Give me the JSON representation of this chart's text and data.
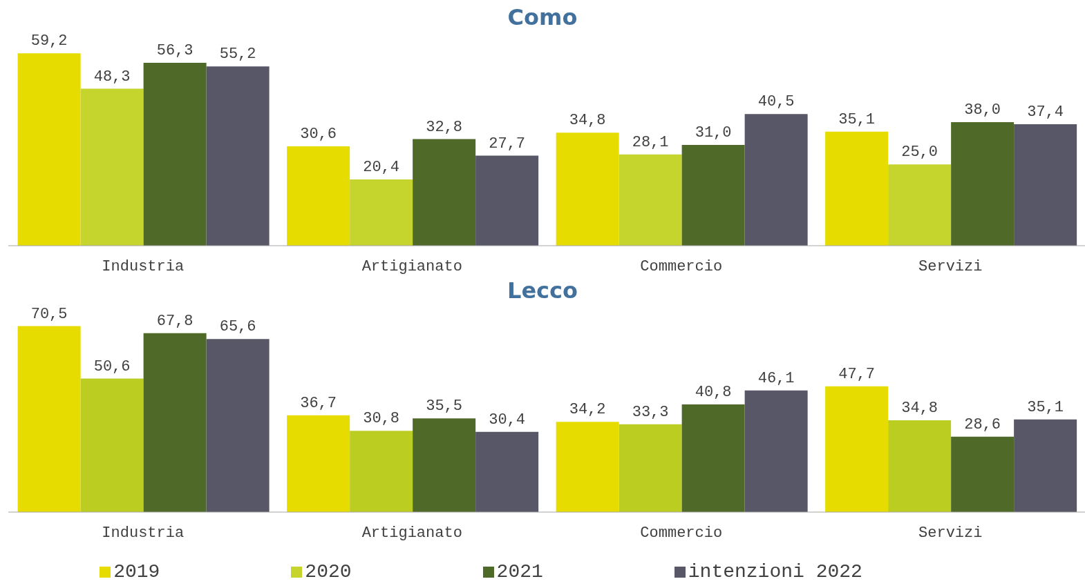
{
  "chart_data": [
    {
      "type": "bar",
      "title": "Como",
      "categories": [
        "Industria",
        "Artigianato",
        "Commercio",
        "Servizi"
      ],
      "tick_labels": "x",
      "grid": false,
      "legend": "bottom",
      "series": [
        {
          "name": "2019",
          "color": "#e6dc00",
          "values": [
            59.2,
            30.6,
            34.8,
            35.1
          ],
          "value_labels": [
            "59,2",
            "30,6",
            "34,8",
            "35,1"
          ]
        },
        {
          "name": "2020",
          "color": "#c6d42e",
          "values": [
            48.3,
            20.4,
            28.1,
            25.0
          ],
          "value_labels": [
            "48,3",
            "20,4",
            "28,1",
            "25,0"
          ]
        },
        {
          "name": "2021",
          "color": "#4f6a28",
          "values": [
            56.3,
            32.8,
            31.0,
            38.0
          ],
          "value_labels": [
            "56,3",
            "32,8",
            "31,0",
            "38,0"
          ]
        },
        {
          "name": "intenzioni 2022",
          "color": "#575768",
          "values": [
            55.2,
            27.7,
            40.5,
            37.4
          ],
          "value_labels": [
            "55,2",
            "27,7",
            "40,5",
            "37,4"
          ]
        }
      ]
    },
    {
      "type": "bar",
      "title": "Lecco",
      "categories": [
        "Industria",
        "Artigianato",
        "Commercio",
        "Servizi"
      ],
      "tick_labels": "x",
      "grid": false,
      "series": [
        {
          "color": "#e6dc00",
          "values": [
            70.5,
            36.7,
            34.2,
            47.7
          ],
          "value_labels": [
            "70,5",
            "36,7",
            "34,2",
            "47,7"
          ]
        },
        {
          "color": "#bccd22",
          "values": [
            50.6,
            30.8,
            33.3,
            34.8
          ],
          "value_labels": [
            "50,6",
            "30,8",
            "33,3",
            "34,8"
          ]
        },
        {
          "color": "#4f6a28",
          "values": [
            67.8,
            35.5,
            40.8,
            28.6
          ],
          "value_labels": [
            "67,8",
            "35,5",
            "40,8",
            "28,6"
          ]
        },
        {
          "color": "#575768",
          "values": [
            65.6,
            30.4,
            46.1,
            35.1
          ],
          "value_labels": [
            "65,6",
            "30,4",
            "46,1",
            "35,1"
          ]
        }
      ]
    }
  ]
}
